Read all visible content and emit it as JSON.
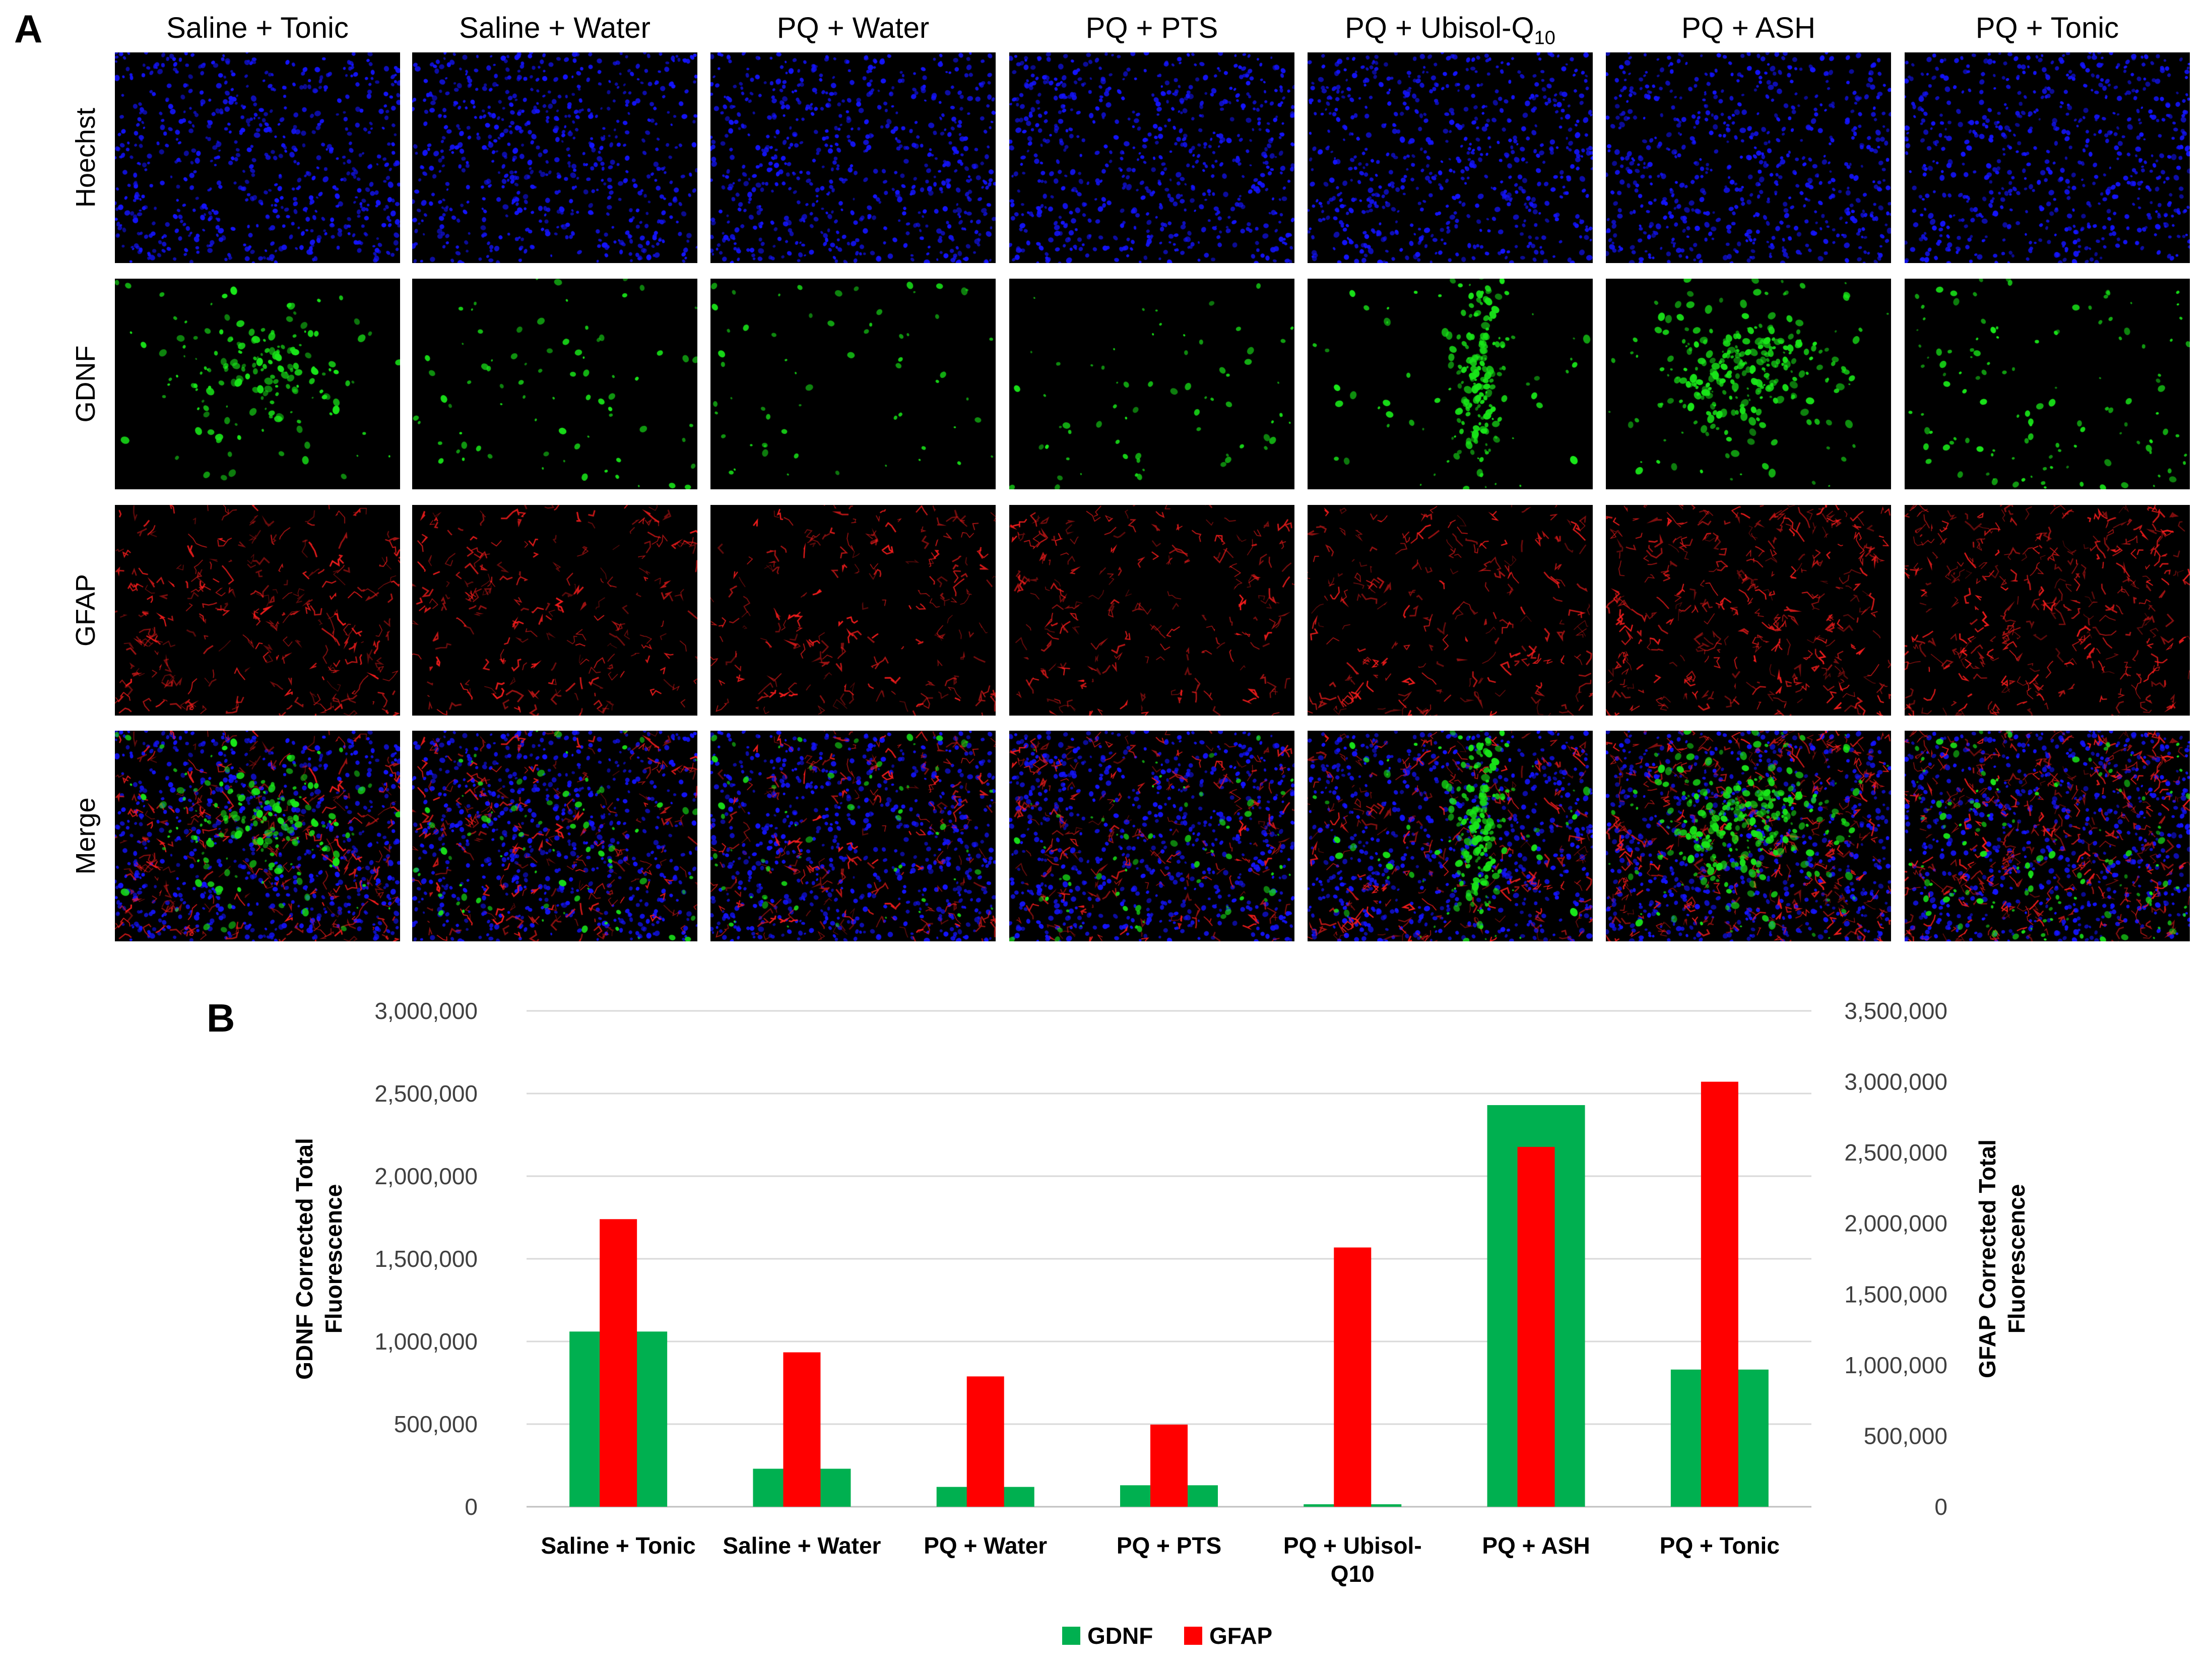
{
  "panel_a": {
    "label": "A",
    "columns": [
      {
        "main": "Saline + Tonic",
        "sub": ""
      },
      {
        "main": "Saline + Water",
        "sub": ""
      },
      {
        "main": "PQ + Water",
        "sub": ""
      },
      {
        "main": "PQ + PTS",
        "sub": ""
      },
      {
        "main": "PQ + Ubisol-Q",
        "sub": "10"
      },
      {
        "main": "PQ + ASH",
        "sub": ""
      },
      {
        "main": "PQ + Tonic",
        "sub": ""
      }
    ],
    "rows": [
      "Hoechst",
      "GDNF",
      "GFAP",
      "Merge"
    ],
    "channel_colors": {
      "Hoechst": "#1414ff",
      "GDNF": "#19e619",
      "GFAP": "#ff1e1e"
    },
    "gdnf_intensity": [
      0.55,
      0.18,
      0.12,
      0.14,
      0.7,
      1.0,
      0.35
    ],
    "gfap_intensity": [
      0.55,
      0.4,
      0.35,
      0.35,
      0.4,
      0.75,
      0.8
    ]
  },
  "panel_b": {
    "label": "B",
    "chart_data": {
      "type": "bar",
      "categories": [
        "Saline + Tonic",
        "Saline + Water",
        "PQ + Water",
        "PQ + PTS",
        "PQ + Ubisol-Q10",
        "PQ + ASH",
        "PQ + Tonic"
      ],
      "category_lines": [
        [
          "Saline + Tonic"
        ],
        [
          "Saline + Water"
        ],
        [
          "PQ + Water"
        ],
        [
          "PQ + PTS"
        ],
        [
          "PQ + Ubisol-",
          "Q10"
        ],
        [
          "PQ + ASH"
        ],
        [
          "PQ + Tonic"
        ]
      ],
      "series": [
        {
          "name": "GDNF",
          "axis": "left",
          "color": "#00b050",
          "values": [
            1060000,
            230000,
            120000,
            130000,
            15000,
            2430000,
            830000
          ]
        },
        {
          "name": "GFAP",
          "axis": "right",
          "color": "#ff0000",
          "values": [
            2030000,
            1090000,
            920000,
            580000,
            1830000,
            2540000,
            3000000
          ]
        }
      ],
      "ylabel_left": [
        "GDNF Corrected Total",
        "Fluorescence"
      ],
      "ylabel_right": [
        "GFAP Corrected Total",
        "Fluorescence"
      ],
      "ylim_left": [
        0,
        3000000
      ],
      "ylim_right": [
        0,
        3500000
      ],
      "yticks_left": [
        "0",
        "500,000",
        "1,000,000",
        "1,500,000",
        "2,000,000",
        "2,500,000",
        "3,000,000"
      ],
      "yticks_right": [
        "0",
        "500,000",
        "1,000,000",
        "1,500,000",
        "2,000,000",
        "2,500,000",
        "3,000,000",
        "3,500,000"
      ],
      "grid": true,
      "legend_position": "bottom-center"
    }
  }
}
